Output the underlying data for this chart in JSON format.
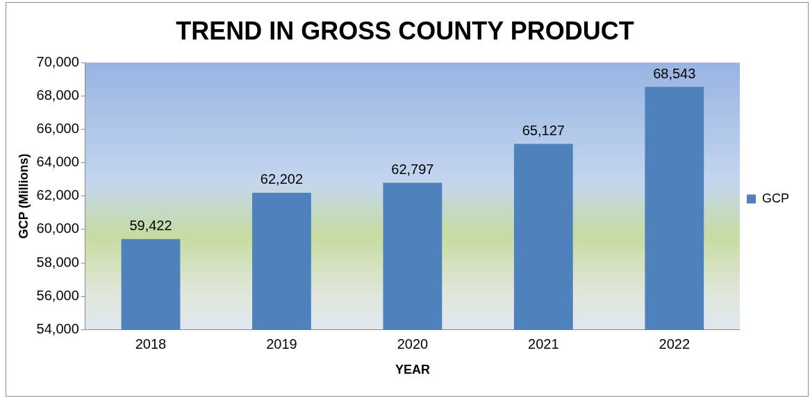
{
  "chart_data": {
    "type": "bar",
    "title": "TREND IN GROSS COUNTY PRODUCT",
    "xlabel": "YEAR",
    "ylabel": "GCP (Millions)",
    "categories": [
      "2018",
      "2019",
      "2020",
      "2021",
      "2022"
    ],
    "series": [
      {
        "name": "GCP",
        "color": "#4f81bd",
        "values": [
          59422,
          62202,
          62797,
          65127,
          68543
        ],
        "value_labels": [
          "59,422",
          "62,202",
          "62,797",
          "65,127",
          "68,543"
        ]
      }
    ],
    "ylim": [
      54000,
      70000
    ],
    "yticks": [
      {
        "value": 54000,
        "label": "54,000"
      },
      {
        "value": 56000,
        "label": "56,000"
      },
      {
        "value": 58000,
        "label": "58,000"
      },
      {
        "value": 60000,
        "label": "60,000"
      },
      {
        "value": 62000,
        "label": "62,000"
      },
      {
        "value": 64000,
        "label": "64,000"
      },
      {
        "value": 66000,
        "label": "66,000"
      },
      {
        "value": 68000,
        "label": "68,000"
      },
      {
        "value": 70000,
        "label": "70,000"
      }
    ],
    "grid": false,
    "legend": "right"
  }
}
